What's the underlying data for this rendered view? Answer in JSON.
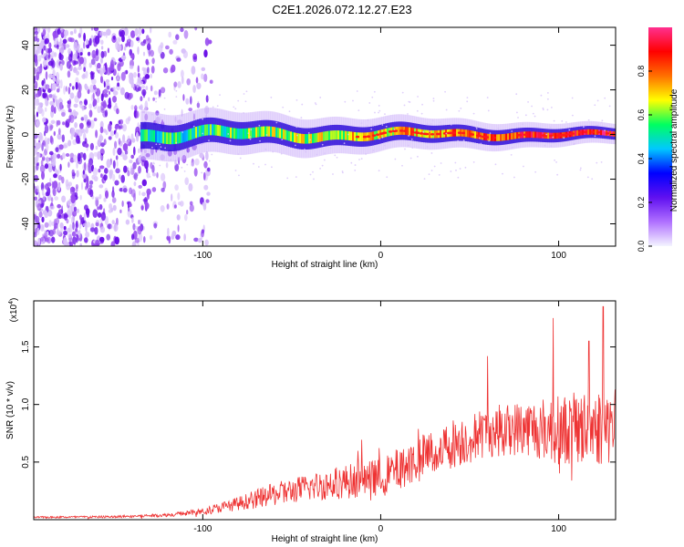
{
  "title": "C2E1.2026.072.12.27.E23",
  "chart_data": [
    {
      "type": "heatmap",
      "name": "spectrogram",
      "xlabel": "Height of straight line (km)",
      "ylabel": "Frequency (Hz)",
      "xlim": [
        -195,
        132
      ],
      "ylim": [
        -50,
        48
      ],
      "x_ticks": [
        -100,
        0,
        100
      ],
      "x_tick_labels": [
        "-100",
        "0",
        "100"
      ],
      "y_ticks": [
        -40,
        -20,
        0,
        20,
        40
      ],
      "y_tick_labels": [
        "-40",
        "-20",
        "0",
        "20",
        "40"
      ],
      "colorbar": {
        "label": "Normalized spectral amplitude",
        "range": [
          0,
          1
        ],
        "ticks": [
          0.0,
          0.2,
          0.4,
          0.6,
          0.8
        ],
        "tick_labels": [
          "0.0",
          "0.2",
          "0.4",
          "0.6",
          "0.8"
        ],
        "colors": [
          "#f4f4ff",
          "#b070ff",
          "#6010f0",
          "#0000ff",
          "#00c8ff",
          "#00ff60",
          "#ffff00",
          "#ff7000",
          "#ff0000",
          "#ff3090"
        ]
      },
      "signal_band": {
        "x_start": -135,
        "x_end": 132,
        "center_frequency": 0,
        "half_width": [
          6,
          2.5
        ]
      },
      "noise_region": {
        "x_start": -195,
        "x_end": -105
      }
    },
    {
      "type": "line",
      "name": "snr",
      "xlabel": "Height of straight line (km)",
      "ylabel": "SNR (10 * v/v)",
      "scale_label": "(x10",
      "scale_exponent": "4",
      "xlim": [
        -195,
        132
      ],
      "ylim": [
        0,
        1.9
      ],
      "x_ticks": [
        -100,
        0,
        100
      ],
      "x_tick_labels": [
        "-100",
        "0",
        "100"
      ],
      "y_ticks": [
        0.5,
        1.0,
        1.5
      ],
      "y_tick_labels": [
        "0.5",
        "1.0",
        "1.5"
      ],
      "color": "#ee3333",
      "envelope_x": [
        -195,
        -150,
        -120,
        -100,
        -80,
        -60,
        -40,
        -20,
        0,
        20,
        40,
        60,
        80,
        100,
        120,
        132
      ],
      "envelope_mean": [
        0.02,
        0.025,
        0.04,
        0.07,
        0.14,
        0.22,
        0.28,
        0.33,
        0.37,
        0.52,
        0.66,
        0.76,
        0.8,
        0.78,
        0.8,
        0.82
      ],
      "envelope_amplitude": [
        0.008,
        0.01,
        0.015,
        0.03,
        0.06,
        0.1,
        0.12,
        0.15,
        0.16,
        0.2,
        0.22,
        0.22,
        0.24,
        0.3,
        0.34,
        0.34
      ],
      "peaks": [
        {
          "x": 97,
          "y": 1.75
        },
        {
          "x": 125,
          "y": 1.85
        },
        {
          "x": 60,
          "y": 1.42
        },
        {
          "x": 117,
          "y": 1.55
        }
      ]
    }
  ]
}
